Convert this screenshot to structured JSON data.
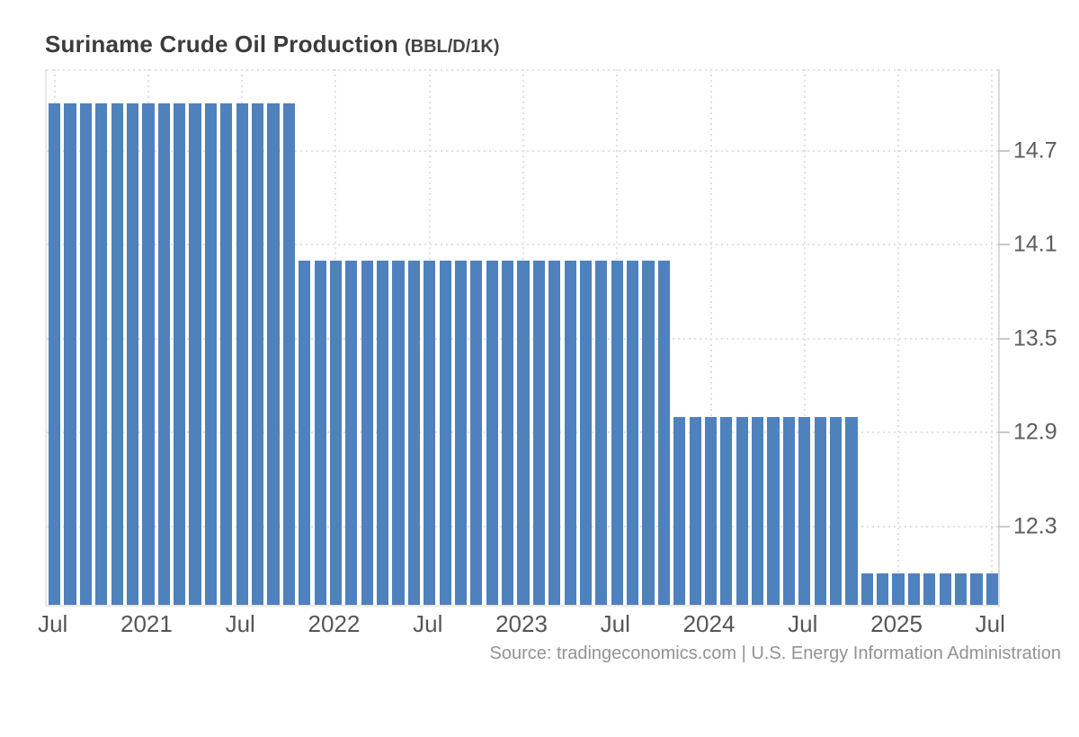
{
  "header": {
    "title_main": "Suriname Crude Oil Production",
    "title_unit": "(BBL/D/1K)"
  },
  "footer": {
    "source_text": "Source: tradingeconomics.com | U.S. Energy Information Administration"
  },
  "colors": {
    "bar": "#4F81BD",
    "grid_dots": "#e0e0e0",
    "right_axis_line": "#dcdcdc",
    "tick_mark": "#c9c9c9",
    "axis_label": "#5d5d5d",
    "title": "#3c3c3c",
    "source": "#929292",
    "background": "#ffffff"
  },
  "chart_data": {
    "type": "bar",
    "title": "Suriname Crude Oil Production",
    "ylabel": "",
    "xlabel": "",
    "unit": "BBL/D/1K",
    "frequency": "monthly",
    "x_start": "Jul 2020",
    "x_end": "Jul 2025",
    "n_bars": 61,
    "x_tick_labels": [
      "Jul",
      "2021",
      "Jul",
      "2022",
      "Jul",
      "2023",
      "Jul",
      "2024",
      "Jul",
      "2025",
      "Jul"
    ],
    "x_tick_month_interval": 6,
    "y_ticks": [
      14.7,
      14.1,
      13.5,
      12.9,
      12.3
    ],
    "ylim": [
      11.8,
      15.22
    ],
    "grid": "dotted",
    "legend": "none",
    "segments": [
      {
        "from": "2020-07",
        "to": "2021-10",
        "months": 16,
        "value": 15
      },
      {
        "from": "2021-11",
        "to": "2023-10",
        "months": 24,
        "value": 14
      },
      {
        "from": "2023-11",
        "to": "2024-10",
        "months": 12,
        "value": 13
      },
      {
        "from": "2024-11",
        "to": "2025-07",
        "months": 9,
        "value": 12
      }
    ],
    "values": [
      15,
      15,
      15,
      15,
      15,
      15,
      15,
      15,
      15,
      15,
      15,
      15,
      15,
      15,
      15,
      15,
      14,
      14,
      14,
      14,
      14,
      14,
      14,
      14,
      14,
      14,
      14,
      14,
      14,
      14,
      14,
      14,
      14,
      14,
      14,
      14,
      14,
      14,
      14,
      14,
      13,
      13,
      13,
      13,
      13,
      13,
      13,
      13,
      13,
      13,
      13,
      13,
      12,
      12,
      12,
      12,
      12,
      12,
      12,
      12,
      12
    ]
  }
}
